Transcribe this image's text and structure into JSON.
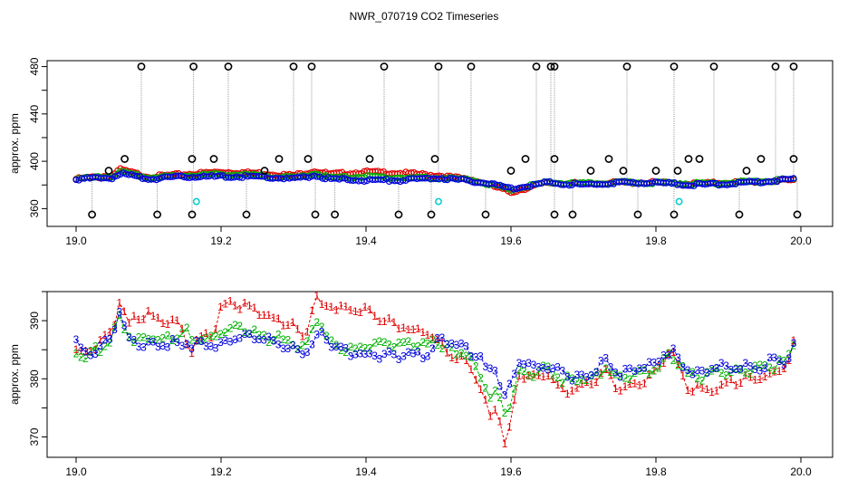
{
  "title": "NWR_070719  CO2 Timeseries",
  "chart_data": [
    {
      "type": "scatter",
      "ylabel": "approx. ppm",
      "xlim": [
        19.0,
        20.0
      ],
      "ylim": [
        345,
        485
      ],
      "xticks": [
        19.0,
        19.2,
        19.4,
        19.6,
        19.8,
        20.0
      ],
      "yticks": [
        360,
        400,
        440,
        480
      ],
      "colors": {
        "s1": "#e00000",
        "s2": "#00b000",
        "s3": "#0000dd",
        "outlier": "#000000",
        "flag": "#00cccc",
        "spike": "#9a9a9a"
      },
      "series": [
        {
          "key": "s1",
          "x": [
            19.0,
            19.05,
            19.06,
            19.1,
            19.15,
            19.2,
            19.25,
            19.3,
            19.33,
            19.35,
            19.4,
            19.45,
            19.5,
            19.55,
            19.58,
            19.6,
            19.65,
            19.7,
            19.75,
            19.8,
            19.85,
            19.9,
            19.95,
            19.99
          ],
          "y": [
            385,
            388,
            393,
            387,
            389,
            391,
            390,
            388,
            392,
            389,
            391,
            390,
            388,
            384,
            378,
            374,
            382,
            381,
            382,
            382,
            381,
            382,
            383,
            384
          ]
        },
        {
          "key": "s2",
          "x": [
            19.0,
            19.05,
            19.06,
            19.1,
            19.15,
            19.2,
            19.25,
            19.3,
            19.33,
            19.35,
            19.4,
            19.45,
            19.5,
            19.55,
            19.58,
            19.6,
            19.65,
            19.7,
            19.75,
            19.8,
            19.85,
            19.9,
            19.95,
            19.99
          ],
          "y": [
            385,
            387,
            391,
            386,
            388,
            389,
            388,
            386,
            390,
            386,
            387,
            386,
            386,
            384,
            379,
            376,
            382,
            381,
            382,
            382,
            381,
            382,
            383,
            385
          ]
        },
        {
          "key": "s3",
          "x": [
            19.0,
            19.05,
            19.06,
            19.1,
            19.15,
            19.2,
            19.25,
            19.3,
            19.33,
            19.35,
            19.4,
            19.45,
            19.5,
            19.55,
            19.58,
            19.6,
            19.65,
            19.7,
            19.75,
            19.8,
            19.85,
            19.9,
            19.95,
            19.99
          ],
          "y": [
            385,
            386,
            390,
            385,
            387,
            387,
            387,
            385,
            388,
            385,
            384,
            384,
            386,
            383,
            380,
            377,
            382,
            380,
            382,
            382,
            380,
            381,
            383,
            385
          ]
        }
      ],
      "outliers": {
        "x_high": [
          19.09,
          19.162,
          19.21,
          19.3,
          19.325,
          19.425,
          19.5,
          19.545,
          19.635,
          19.655,
          19.66,
          19.76,
          19.825,
          19.88,
          19.965,
          19.99
        ],
        "y_high": 480,
        "x_mid": [
          19.045,
          19.067,
          19.16,
          19.19,
          19.26,
          19.28,
          19.32,
          19.405,
          19.495,
          19.6,
          19.62,
          19.66,
          19.71,
          19.735,
          19.755,
          19.8,
          19.83,
          19.845,
          19.86,
          19.925,
          19.945,
          19.99
        ],
        "y_mid": [
          392,
          402,
          402,
          402,
          392,
          402,
          402,
          402,
          402,
          392,
          402,
          402,
          392,
          402,
          392,
          392,
          392,
          402,
          402,
          392,
          402,
          402
        ],
        "x_low": [
          19.022,
          19.112,
          19.16,
          19.235,
          19.33,
          19.357,
          19.445,
          19.49,
          19.565,
          19.66,
          19.685,
          19.775,
          19.825,
          19.915,
          19.995
        ],
        "y_low": 355
      },
      "flags": {
        "x": [
          19.166,
          19.5,
          19.832
        ],
        "y": [
          366,
          366,
          366
        ]
      }
    },
    {
      "type": "line",
      "ylabel": "approx. ppm",
      "xlim": [
        19.0,
        20.0
      ],
      "ylim": [
        366.5,
        395
      ],
      "xticks": [
        19.0,
        19.2,
        19.4,
        19.6,
        19.8,
        20.0
      ],
      "yticks": [
        370,
        380,
        390
      ],
      "series": [
        {
          "key": "s1",
          "label": "1",
          "x": [
            19.0,
            19.01,
            19.03,
            19.05,
            19.06,
            19.07,
            19.08,
            19.1,
            19.12,
            19.14,
            19.15,
            19.16,
            19.17,
            19.19,
            19.2,
            19.22,
            19.24,
            19.26,
            19.28,
            19.3,
            19.31,
            19.32,
            19.33,
            19.34,
            19.35,
            19.37,
            19.39,
            19.41,
            19.43,
            19.45,
            19.47,
            19.49,
            19.5,
            19.52,
            19.54,
            19.56,
            19.57,
            19.58,
            19.59,
            19.6,
            19.61,
            19.63,
            19.65,
            19.67,
            19.69,
            19.71,
            19.73,
            19.75,
            19.77,
            19.79,
            19.81,
            19.82,
            19.84,
            19.86,
            19.88,
            19.9,
            19.92,
            19.94,
            19.96,
            19.98,
            19.99
          ],
          "y": [
            385,
            384,
            386,
            388,
            394,
            389,
            390,
            391,
            390,
            390,
            387,
            385,
            387,
            388,
            392,
            393,
            392,
            391,
            390,
            389,
            387,
            389,
            394,
            392,
            393,
            392,
            392,
            391,
            390,
            389,
            388,
            388,
            386,
            384,
            383,
            378,
            373,
            376,
            369,
            372,
            381,
            380,
            381,
            378,
            378,
            379,
            381,
            378,
            379,
            380,
            383,
            385,
            379,
            378,
            378,
            379,
            380,
            380,
            381,
            382,
            386
          ]
        },
        {
          "key": "s2",
          "label": "2",
          "x": [
            19.0,
            19.01,
            19.03,
            19.05,
            19.06,
            19.07,
            19.08,
            19.1,
            19.12,
            19.14,
            19.15,
            19.16,
            19.17,
            19.19,
            19.2,
            19.22,
            19.24,
            19.26,
            19.28,
            19.3,
            19.31,
            19.32,
            19.33,
            19.34,
            19.35,
            19.37,
            19.39,
            19.41,
            19.43,
            19.45,
            19.47,
            19.49,
            19.5,
            19.52,
            19.54,
            19.56,
            19.57,
            19.58,
            19.59,
            19.6,
            19.61,
            19.63,
            19.65,
            19.67,
            19.69,
            19.71,
            19.73,
            19.75,
            19.77,
            19.79,
            19.81,
            19.82,
            19.84,
            19.86,
            19.88,
            19.9,
            19.92,
            19.94,
            19.96,
            19.98,
            19.99
          ],
          "y": [
            385,
            384,
            385,
            387,
            391,
            388,
            387,
            387,
            387,
            387,
            389,
            386,
            387,
            387,
            388,
            389,
            388,
            387,
            387,
            386,
            385,
            386,
            390,
            389,
            386,
            385,
            385,
            386,
            386,
            386,
            386,
            386,
            386,
            385,
            384,
            380,
            377,
            378,
            374,
            376,
            381,
            381,
            382,
            380,
            380,
            380,
            382,
            380,
            381,
            381,
            383,
            384,
            381,
            380,
            381,
            381,
            381,
            382,
            382,
            383,
            386
          ]
        },
        {
          "key": "s3",
          "label": "3",
          "x": [
            19.0,
            19.01,
            19.03,
            19.05,
            19.06,
            19.07,
            19.08,
            19.1,
            19.12,
            19.14,
            19.15,
            19.16,
            19.17,
            19.19,
            19.2,
            19.22,
            19.24,
            19.26,
            19.28,
            19.3,
            19.31,
            19.32,
            19.33,
            19.34,
            19.35,
            19.37,
            19.39,
            19.41,
            19.43,
            19.45,
            19.47,
            19.49,
            19.5,
            19.52,
            19.54,
            19.56,
            19.57,
            19.58,
            19.59,
            19.6,
            19.61,
            19.63,
            19.65,
            19.67,
            19.69,
            19.71,
            19.73,
            19.75,
            19.77,
            19.79,
            19.81,
            19.82,
            19.84,
            19.86,
            19.88,
            19.9,
            19.92,
            19.94,
            19.96,
            19.98,
            19.99
          ],
          "y": [
            386,
            384,
            385,
            387,
            392,
            387,
            386,
            386,
            386,
            386,
            386,
            386,
            386,
            386,
            386,
            387,
            387,
            387,
            386,
            385,
            384,
            385,
            387,
            388,
            386,
            385,
            384,
            384,
            384,
            384,
            384,
            384,
            387,
            386,
            385,
            383,
            381,
            382,
            376,
            379,
            383,
            382,
            382,
            381,
            380,
            381,
            383,
            381,
            382,
            382,
            384,
            385,
            382,
            381,
            382,
            382,
            382,
            382,
            383,
            383,
            386
          ]
        }
      ]
    }
  ]
}
